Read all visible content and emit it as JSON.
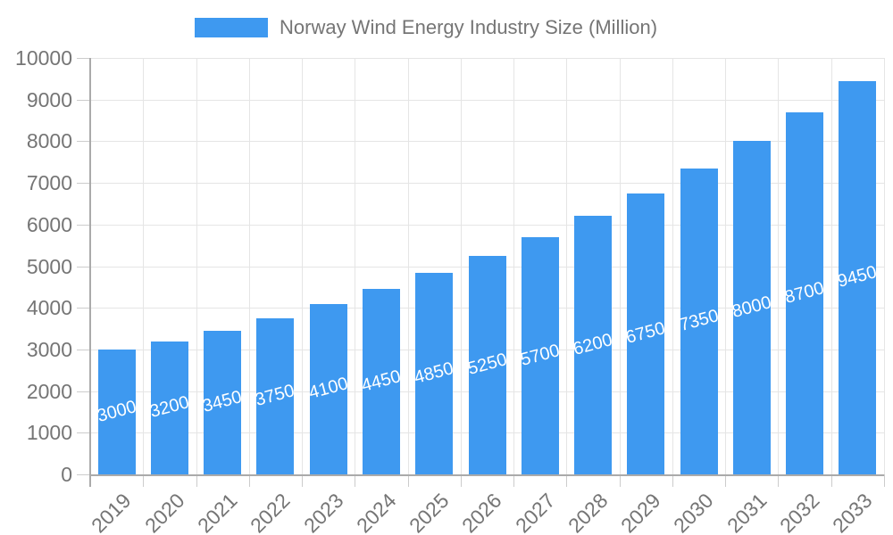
{
  "legend": {
    "label": "Norway Wind Energy Industry Size (Million)"
  },
  "chart_data": {
    "type": "bar",
    "title": "Norway Wind Energy Industry Size (Million)",
    "categories": [
      "2019",
      "2020",
      "2021",
      "2022",
      "2023",
      "2024",
      "2025",
      "2026",
      "2027",
      "2028",
      "2029",
      "2030",
      "2031",
      "2032",
      "2033"
    ],
    "values": [
      3000,
      3200,
      3450,
      3750,
      4100,
      4450,
      4850,
      5250,
      5700,
      6200,
      6750,
      7350,
      8000,
      8700,
      9450
    ],
    "bar_labels": [
      "3000",
      "3200",
      "3450",
      "3750",
      "4100",
      "4450",
      "4850",
      "5250",
      "5700",
      "6200",
      "6750",
      "7350",
      "8000",
      "8700",
      "9450"
    ],
    "xlabel": "",
    "ylabel": "",
    "ylim": [
      0,
      10000
    ],
    "yticks": [
      "0",
      "1000",
      "2000",
      "3000",
      "4000",
      "5000",
      "6000",
      "7000",
      "8000",
      "9000",
      "10000"
    ],
    "ytick_step": 1000,
    "grid": true,
    "legend_position": "top",
    "colors": {
      "bar": "#3e99f0",
      "bar_label_text": "#ffffff",
      "axis_text": "#757575",
      "gridline": "#e5e5e5",
      "axis_line": "#aaaaaa",
      "tick_line": "#cccccc"
    }
  }
}
